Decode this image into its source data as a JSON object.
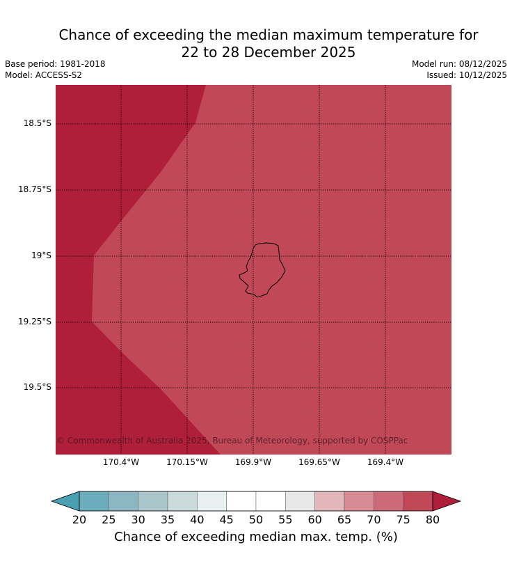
{
  "title_line1": "Chance of exceeding the median maximum temperature for",
  "title_line2": "22 to 28 December 2025",
  "base_period": "Base period: 1981-2018",
  "model": "Model: ACCESS-S2",
  "model_run": "Model run: 08/12/2025",
  "issued": "Issued: 10/12/2025",
  "lat_labels": [
    "18.5°S",
    "18.75°S",
    "19°S",
    "19.25°S",
    "19.5°S"
  ],
  "lon_labels": [
    "170.4°W",
    "170.15°W",
    "169.9°W",
    "169.65°W",
    "169.4°W"
  ],
  "copyright": "© Commonwealth of Australia 2025, Bureau of Meteorology, supported by COSPPac",
  "map_regions": [
    {
      "category": "75-80",
      "color": "#c14856"
    },
    {
      "category": ">80",
      "color": "#b01f3a"
    }
  ],
  "colorbar": {
    "ticks": [
      "20",
      "25",
      "30",
      "35",
      "40",
      "45",
      "50",
      "55",
      "60",
      "65",
      "70",
      "75",
      "80"
    ],
    "colors": [
      "#6badbd",
      "#8cb6c2",
      "#a9c7cb",
      "#c9d9dc",
      "#e8f0f1",
      "#ffffff",
      "#ffffff",
      "#e8e8e9",
      "#e2b6bb",
      "#d68b95",
      "#cc6a77",
      "#c14856"
    ],
    "under_color": "#4a9fb0",
    "over_color": "#b01f3a",
    "label": "Chance of exceeding median max. temp. (%)"
  }
}
